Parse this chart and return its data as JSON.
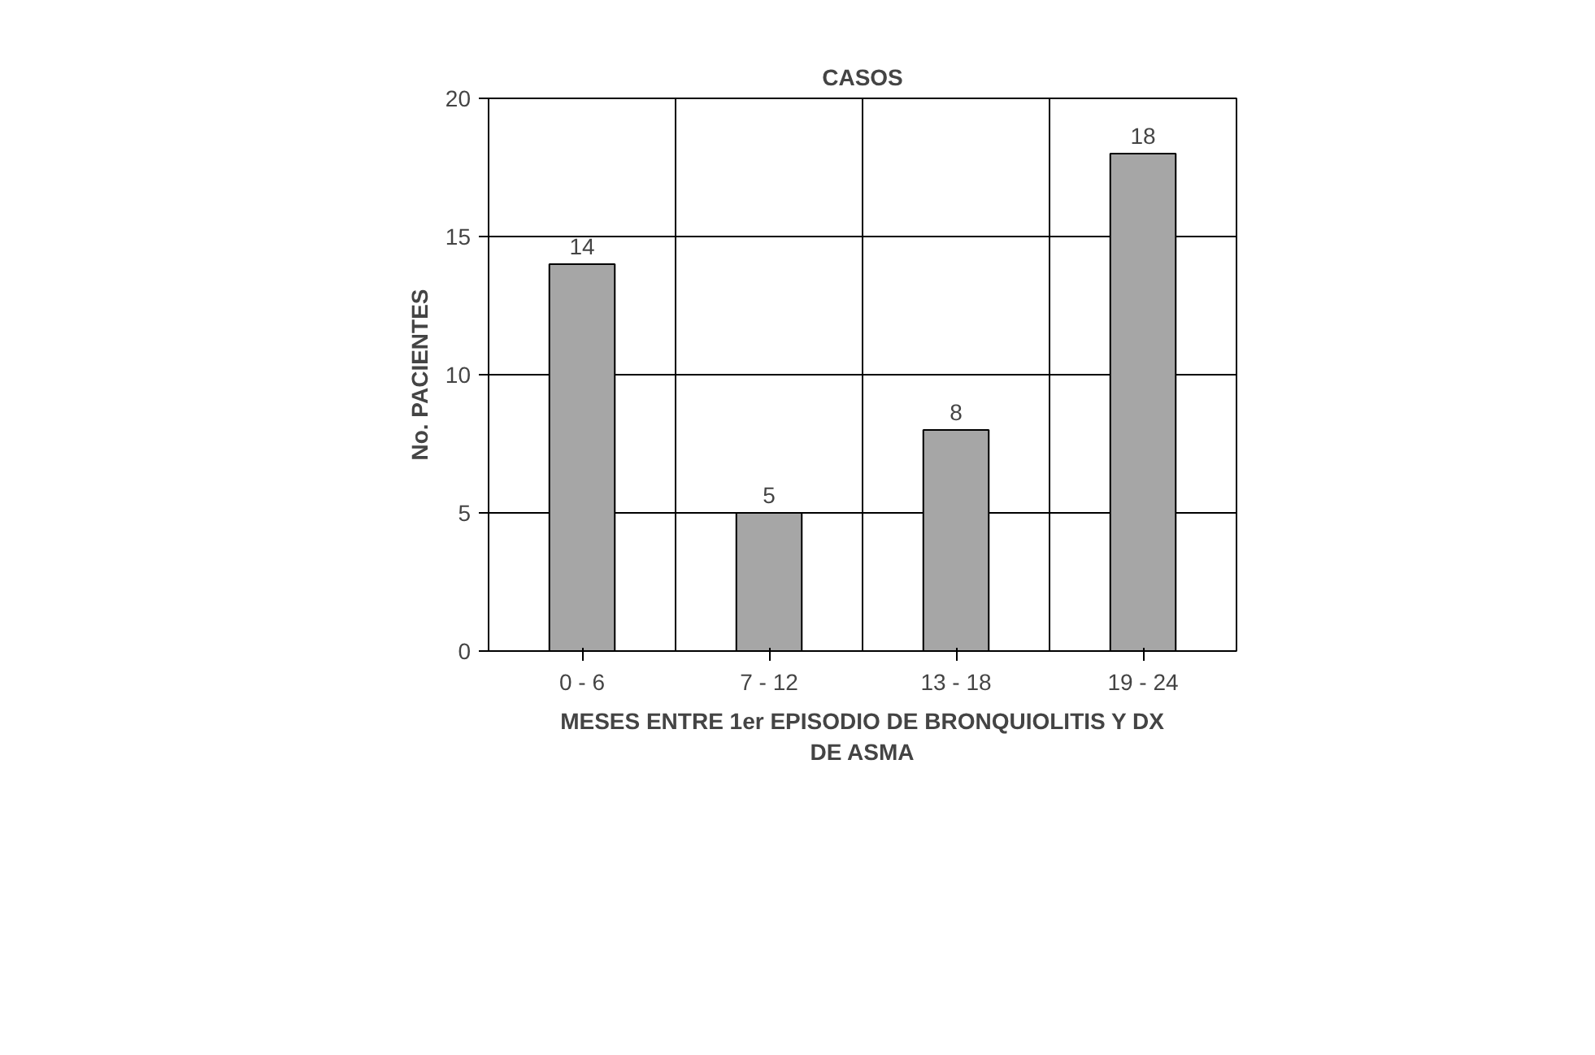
{
  "chart_data": {
    "type": "bar",
    "title": "CASOS",
    "ylabel": "No. PACIENTES",
    "xlabel": "MESES ENTRE 1er EPISODIO DE BRONQUIOLITIS Y DX DE ASMA",
    "categories": [
      "0 - 6",
      "7 - 12",
      "13 - 18",
      "19 - 24"
    ],
    "values": [
      14,
      5,
      8,
      18
    ],
    "color": "#a6a6a6",
    "ylim": [
      0,
      20
    ],
    "yticks": [
      0,
      5,
      10,
      15,
      20
    ],
    "grid": true,
    "data_labels": true
  }
}
